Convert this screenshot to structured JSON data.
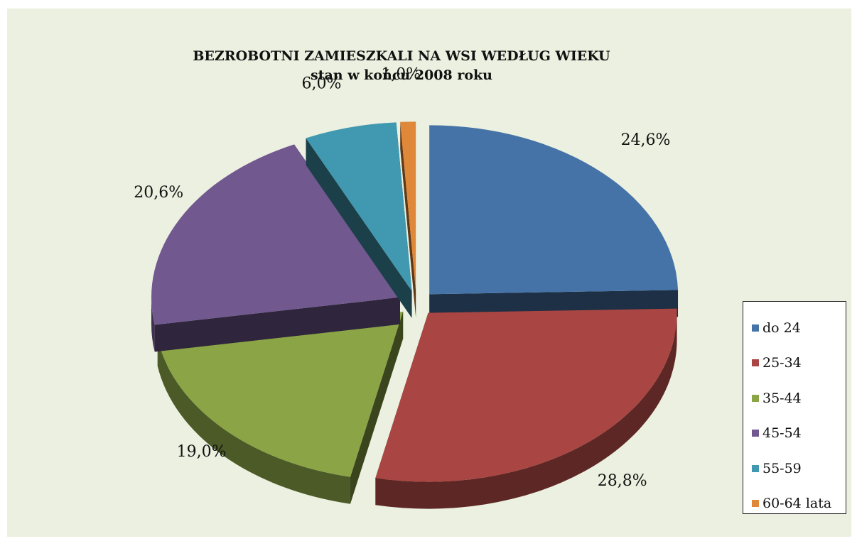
{
  "chart_data": {
    "type": "pie",
    "title": "BEZROBOTNI ZAMIESZKALI NA WSI WEDŁUG WIEKU",
    "subtitle": "stan w końcu 2008 roku",
    "categories": [
      "do 24",
      "25-34",
      "35-44",
      "45-54",
      "55-59",
      "60-64 lata"
    ],
    "values": [
      24.6,
      28.8,
      19.0,
      20.6,
      6.0,
      1.0
    ],
    "data_labels": [
      "24,6%",
      "28,8%",
      "19,0%",
      "20,6%",
      "6,0%",
      "1,0%"
    ],
    "colors": [
      "#4573a7",
      "#a94643",
      "#8aa446",
      "#71588f",
      "#4099b0",
      "#e0883a"
    ],
    "legend_position": "right",
    "exploded": true,
    "three_d": true
  }
}
